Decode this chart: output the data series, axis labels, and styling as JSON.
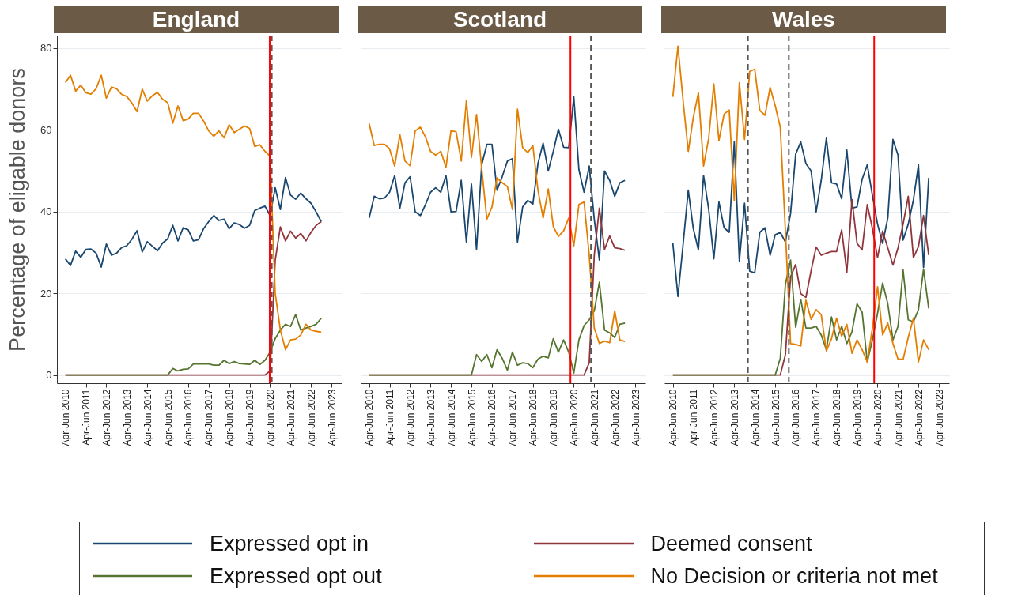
{
  "chart_data": [
    {
      "type": "line",
      "title": "England",
      "ylabel": "Percentage of eligable donors",
      "legend": "bottom",
      "grid": "y",
      "x": [
        "2010-04",
        "2010-07",
        "2010-10",
        "2011-01",
        "2011-04",
        "2011-07",
        "2011-10",
        "2012-01",
        "2012-04",
        "2012-07",
        "2012-10",
        "2013-01",
        "2013-04",
        "2013-07",
        "2013-10",
        "2014-01",
        "2014-04",
        "2014-07",
        "2014-10",
        "2015-01",
        "2015-04",
        "2015-07",
        "2015-10",
        "2016-01",
        "2016-04",
        "2016-07",
        "2016-10",
        "2017-01",
        "2017-04",
        "2017-07",
        "2017-10",
        "2018-01",
        "2018-04",
        "2018-07",
        "2018-10",
        "2019-01",
        "2019-04",
        "2019-07",
        "2019-10",
        "2020-01",
        "2020-04",
        "2020-07",
        "2020-10",
        "2021-01",
        "2021-04",
        "2021-07",
        "2021-10",
        "2022-01",
        "2022-04",
        "2022-07",
        "2022-10"
      ],
      "xlim": [
        "2009-11",
        "2023-10"
      ],
      "ylim": [
        -2,
        83
      ],
      "yticks": [
        0,
        20,
        40,
        60,
        80
      ],
      "xticks": [
        {
          "value": "2010-04",
          "label": "Apr-Jun 2010"
        },
        {
          "value": "2011-04",
          "label": "Apr-Jun 2011"
        },
        {
          "value": "2012-04",
          "label": "Apr-Jun 2012"
        },
        {
          "value": "2013-04",
          "label": "Apr-Jun 2013"
        },
        {
          "value": "2014-04",
          "label": "Apr-Jun 2014"
        },
        {
          "value": "2015-04",
          "label": "Apr-Jun 2015"
        },
        {
          "value": "2016-04",
          "label": "Apr-Jun 2016"
        },
        {
          "value": "2017-04",
          "label": "Apr-Jun 2017"
        },
        {
          "value": "2018-04",
          "label": "Apr-Jun 2018"
        },
        {
          "value": "2019-04",
          "label": "Apr-Jun 2019"
        },
        {
          "value": "2020-04",
          "label": "Apr-Jun 2020"
        },
        {
          "value": "2021-04",
          "label": "Apr-Jun 2021"
        },
        {
          "value": "2022-04",
          "label": "Apr-Jun 2022"
        },
        {
          "value": "2023-04",
          "label": "Apr-Jun 2023"
        }
      ],
      "ref_lines": [
        {
          "axis": "x",
          "value": "2020-03-25",
          "color": "#ff0000",
          "line_style": "solid"
        },
        {
          "axis": "x",
          "value": "2020-05",
          "color": "#555555",
          "line_style": "dashed"
        }
      ],
      "series": [
        {
          "name": "Expressed opt in",
          "color": "#1a476f",
          "values": [
            28.4,
            26.8,
            30.3,
            28.8,
            30.7,
            30.8,
            29.8,
            26.4,
            32,
            29.3,
            29.8,
            31.2,
            31.6,
            33.2,
            35.3,
            30.1,
            32.6,
            31.5,
            30.4,
            32.3,
            33.3,
            36.6,
            32.8,
            36,
            35.5,
            32.8,
            33.1,
            35.8,
            37.5,
            39,
            37.8,
            38.1,
            35.8,
            37.2,
            36.8,
            35.9,
            36.6,
            40.2,
            40.8,
            41.3,
            39,
            45.8,
            40.5,
            48.3,
            44,
            43,
            44.5,
            43.1,
            42,
            39.9,
            37.5
          ]
        },
        {
          "name": "Deemed consent",
          "color": "#90353b",
          "values": [
            0,
            0,
            0,
            0,
            0,
            0,
            0,
            0,
            0,
            0,
            0,
            0,
            0,
            0,
            0,
            0,
            0,
            0,
            0,
            0,
            0,
            0,
            0,
            0,
            0,
            0,
            0,
            0,
            0,
            0,
            0,
            0,
            0,
            0,
            0,
            0,
            0,
            0,
            0,
            0,
            1,
            28,
            36.2,
            32.8,
            35.2,
            33.5,
            34.6,
            32.8,
            34.9,
            36.6,
            37.5
          ]
        },
        {
          "name": "Expressed opt out",
          "color": "#55752f",
          "values": [
            0,
            0,
            0,
            0,
            0,
            0,
            0,
            0,
            0,
            0,
            0,
            0,
            0,
            0,
            0,
            0,
            0,
            0,
            0,
            0,
            0,
            1.6,
            1.0,
            1.4,
            1.5,
            2.7,
            2.7,
            2.7,
            2.7,
            2.4,
            2.4,
            3.6,
            2.8,
            3.3,
            2.8,
            2.7,
            2.6,
            3.6,
            2.6,
            3.6,
            5.6,
            8.9,
            11,
            12.4,
            11.9,
            14.8,
            11,
            11.5,
            11.9,
            12.4,
            13.9
          ]
        },
        {
          "name": "No Decision or criteria not met",
          "color": "#e37e00",
          "values": [
            71.5,
            73.3,
            69.4,
            70.9,
            69,
            68.7,
            70,
            73.3,
            67.7,
            70.4,
            70,
            68.6,
            68.1,
            66.5,
            64.4,
            69.9,
            67,
            68.3,
            69.1,
            67.4,
            66.6,
            61.6,
            65.8,
            62.2,
            62.6,
            64,
            64,
            62.1,
            59.7,
            58.4,
            59.7,
            58,
            61.2,
            59.3,
            60.1,
            60.9,
            60.3,
            55.9,
            56.3,
            54.7,
            53.5,
            20,
            11,
            6.2,
            8.6,
            8.8,
            9.8,
            12.4,
            11,
            10.7,
            10.5
          ]
        }
      ]
    },
    {
      "type": "line",
      "title": "Scotland",
      "legend": "bottom",
      "grid": "y",
      "tick_labels": "x",
      "x": [
        "2010-04",
        "2010-07",
        "2010-10",
        "2011-01",
        "2011-04",
        "2011-07",
        "2011-10",
        "2012-01",
        "2012-04",
        "2012-07",
        "2012-10",
        "2013-01",
        "2013-04",
        "2013-07",
        "2013-10",
        "2014-01",
        "2014-04",
        "2014-07",
        "2014-10",
        "2015-01",
        "2015-04",
        "2015-07",
        "2015-10",
        "2016-01",
        "2016-04",
        "2016-07",
        "2016-10",
        "2017-01",
        "2017-04",
        "2017-07",
        "2017-10",
        "2018-01",
        "2018-04",
        "2018-07",
        "2018-10",
        "2019-01",
        "2019-04",
        "2019-07",
        "2019-10",
        "2020-01",
        "2020-04",
        "2020-07",
        "2020-10",
        "2021-01",
        "2021-04",
        "2021-07",
        "2021-10",
        "2022-01",
        "2022-04",
        "2022-07",
        "2022-10"
      ],
      "xlim": [
        "2009-11",
        "2023-10"
      ],
      "ylim": [
        -2,
        83
      ],
      "yticks": [
        0,
        20,
        40,
        60,
        80
      ],
      "xticks": [
        {
          "value": "2010-04",
          "label": "Apr-Jun 2010"
        },
        {
          "value": "2011-04",
          "label": "Apr-Jun 2011"
        },
        {
          "value": "2012-04",
          "label": "Apr-Jun 2012"
        },
        {
          "value": "2013-04",
          "label": "Apr-Jun 2013"
        },
        {
          "value": "2014-04",
          "label": "Apr-Jun 2014"
        },
        {
          "value": "2015-04",
          "label": "Apr-Jun 2015"
        },
        {
          "value": "2016-04",
          "label": "Apr-Jun 2016"
        },
        {
          "value": "2017-04",
          "label": "Apr-Jun 2017"
        },
        {
          "value": "2018-04",
          "label": "Apr-Jun 2018"
        },
        {
          "value": "2019-04",
          "label": "Apr-Jun 2019"
        },
        {
          "value": "2020-04",
          "label": "Apr-Jun 2020"
        },
        {
          "value": "2021-04",
          "label": "Apr-Jun 2021"
        },
        {
          "value": "2022-04",
          "label": "Apr-Jun 2022"
        },
        {
          "value": "2023-04",
          "label": "Apr-Jun 2023"
        }
      ],
      "ref_lines": [
        {
          "axis": "x",
          "value": "2020-02",
          "color": "#ff0000",
          "line_style": "solid"
        },
        {
          "axis": "x",
          "value": "2021-02",
          "color": "#555555",
          "line_style": "dashed"
        }
      ],
      "series": [
        {
          "name": "Expressed opt in",
          "color": "#1a476f",
          "values": [
            38.4,
            43.7,
            43.1,
            43.3,
            44.7,
            48.8,
            40.8,
            47,
            48.5,
            39.9,
            39,
            41.7,
            44.7,
            45.8,
            44.7,
            48.8,
            39.9,
            40,
            47.6,
            32.5,
            46.7,
            30.7,
            51.4,
            56.4,
            56.4,
            45.2,
            48.5,
            52.3,
            52.9,
            32.5,
            41.1,
            42.7,
            41.8,
            51.7,
            56.7,
            49.9,
            54.7,
            60.1,
            55.7,
            55.6,
            68,
            50.2,
            44.7,
            51.1,
            38.1,
            28.1,
            49.9,
            47.6,
            43.7,
            47,
            47.6
          ]
        },
        {
          "name": "Deemed consent",
          "color": "#90353b",
          "values": [
            0,
            0,
            0,
            0,
            0,
            0,
            0,
            0,
            0,
            0,
            0,
            0,
            0,
            0,
            0,
            0,
            0,
            0,
            0,
            0,
            0,
            0,
            0,
            0,
            0,
            0,
            0,
            0,
            0,
            0,
            0,
            0,
            0,
            0,
            0,
            0,
            0,
            0,
            0,
            0,
            0,
            0,
            0,
            3,
            29.3,
            40.8,
            30.7,
            34,
            31.1,
            30.9,
            30.5
          ]
        },
        {
          "name": "Expressed opt out",
          "color": "#55752f",
          "values": [
            0,
            0,
            0,
            0,
            0,
            0,
            0,
            0,
            0,
            0,
            0,
            0,
            0,
            0,
            0,
            0,
            0,
            0,
            0,
            0,
            0,
            5,
            3.3,
            5,
            1.8,
            6.2,
            4.1,
            1.2,
            5.6,
            2.4,
            3,
            2.8,
            1.8,
            3.9,
            4.6,
            4.2,
            8.9,
            5.6,
            8.6,
            5.6,
            0.5,
            8.6,
            12.1,
            13.5,
            15.7,
            22.7,
            11,
            10.3,
            9.2,
            12.4,
            12.7
          ]
        },
        {
          "name": "No Decision or criteria not met",
          "color": "#e37e00",
          "values": [
            61.5,
            56.1,
            56.4,
            56.4,
            55.3,
            51.1,
            58.8,
            52.3,
            51.2,
            59.7,
            60.6,
            58.2,
            54.7,
            53.8,
            54.7,
            50.8,
            59.7,
            59.5,
            52.3,
            67.1,
            53.2,
            63.7,
            50.5,
            38.1,
            41.1,
            48.2,
            47,
            46.1,
            40.5,
            65,
            55.6,
            54.4,
            56.1,
            45.2,
            38.4,
            45.5,
            36.3,
            33.9,
            35.2,
            38.4,
            31.6,
            41.7,
            42.3,
            29.3,
            11.5,
            7.7,
            8.3,
            7.9,
            15.7,
            8.6,
            8.2
          ]
        }
      ]
    },
    {
      "type": "line",
      "title": "Wales",
      "legend": "bottom",
      "grid": "y",
      "tick_labels": "x",
      "x": [
        "2010-04",
        "2010-07",
        "2010-10",
        "2011-01",
        "2011-04",
        "2011-07",
        "2011-10",
        "2012-01",
        "2012-04",
        "2012-07",
        "2012-10",
        "2013-01",
        "2013-04",
        "2013-07",
        "2013-10",
        "2014-01",
        "2014-04",
        "2014-07",
        "2014-10",
        "2015-01",
        "2015-04",
        "2015-07",
        "2015-10",
        "2016-01",
        "2016-04",
        "2016-07",
        "2016-10",
        "2017-01",
        "2017-04",
        "2017-07",
        "2017-10",
        "2018-01",
        "2018-04",
        "2018-07",
        "2018-10",
        "2019-01",
        "2019-04",
        "2019-07",
        "2019-10",
        "2020-01",
        "2020-04",
        "2020-07",
        "2020-10",
        "2021-01",
        "2021-04",
        "2021-07",
        "2021-10",
        "2022-01",
        "2022-04",
        "2022-07",
        "2022-10"
      ],
      "xlim": [
        "2009-11",
        "2023-10"
      ],
      "ylim": [
        -2,
        83
      ],
      "yticks": [
        0,
        20,
        40,
        60,
        80
      ],
      "xticks": [
        {
          "value": "2010-04",
          "label": "Apr-Jun 2010"
        },
        {
          "value": "2011-04",
          "label": "Apr-Jun 2011"
        },
        {
          "value": "2012-04",
          "label": "Apr-Jun 2012"
        },
        {
          "value": "2013-04",
          "label": "Apr-Jun 2013"
        },
        {
          "value": "2014-04",
          "label": "Apr-Jun 2014"
        },
        {
          "value": "2015-04",
          "label": "Apr-Jun 2015"
        },
        {
          "value": "2016-04",
          "label": "Apr-Jun 2016"
        },
        {
          "value": "2017-04",
          "label": "Apr-Jun 2017"
        },
        {
          "value": "2018-04",
          "label": "Apr-Jun 2018"
        },
        {
          "value": "2019-04",
          "label": "Apr-Jun 2019"
        },
        {
          "value": "2020-04",
          "label": "Apr-Jun 2020"
        },
        {
          "value": "2021-04",
          "label": "Apr-Jun 2021"
        },
        {
          "value": "2022-04",
          "label": "Apr-Jun 2022"
        },
        {
          "value": "2023-04",
          "label": "Apr-Jun 2023"
        }
      ],
      "ref_lines": [
        {
          "axis": "x",
          "value": "2013-12",
          "color": "#555555",
          "line_style": "dashed"
        },
        {
          "axis": "x",
          "value": "2015-12",
          "color": "#555555",
          "line_style": "dashed"
        },
        {
          "axis": "x",
          "value": "2020-02",
          "color": "#ff0000",
          "line_style": "solid"
        }
      ],
      "series": [
        {
          "name": "Expressed opt in",
          "color": "#1a476f",
          "values": [
            32.2,
            19.2,
            32,
            45.2,
            35.8,
            30.6,
            48.8,
            40.5,
            28.4,
            42.3,
            36,
            34.9,
            57,
            27.8,
            42,
            25.4,
            25,
            34.9,
            36,
            29.3,
            34.3,
            34.9,
            32.5,
            39.5,
            54,
            57,
            51.7,
            49.9,
            39.9,
            47.6,
            57.9,
            47,
            46.7,
            43.1,
            55,
            40.8,
            41.1,
            47.9,
            51.4,
            43.9,
            36.9,
            32.2,
            38.4,
            57.6,
            53.8,
            33,
            36.9,
            42.8,
            51.4,
            26.3,
            48.2
          ]
        },
        {
          "name": "Deemed consent",
          "color": "#90353b",
          "values": [
            0,
            0,
            0,
            0,
            0,
            0,
            0,
            0,
            0,
            0,
            0,
            0,
            0,
            0,
            0,
            0,
            0,
            0,
            0,
            0,
            0,
            0,
            5,
            24,
            27,
            19.9,
            19,
            25.5,
            31.3,
            29.3,
            29.8,
            30.2,
            30.2,
            35.5,
            25.1,
            42.9,
            32.2,
            30.6,
            41.7,
            35.8,
            28.7,
            35.2,
            31.1,
            26.9,
            31.1,
            36.9,
            43.7,
            28.7,
            31.4,
            39,
            29.3
          ]
        },
        {
          "name": "Expressed opt out",
          "color": "#55752f",
          "values": [
            0,
            0,
            0,
            0,
            0,
            0,
            0,
            0,
            0,
            0,
            0,
            0,
            0,
            0,
            0,
            0,
            0,
            0,
            0,
            0,
            0,
            4.1,
            22.2,
            28.1,
            11.7,
            18.5,
            11.5,
            11.5,
            11.9,
            9.8,
            6.2,
            14.2,
            8.6,
            11.9,
            7.7,
            10.6,
            17.4,
            15.4,
            3.2,
            8.6,
            15.1,
            22.5,
            17.4,
            8.6,
            11.9,
            25.7,
            13.5,
            13,
            16,
            25.9,
            16.3
          ]
        },
        {
          "name": "No Decision or criteria not met",
          "color": "#e37e00",
          "values": [
            68,
            80.4,
            67,
            54.7,
            63,
            69,
            51.1,
            57.9,
            71.2,
            57.3,
            63.8,
            64.8,
            42.6,
            71.5,
            57.6,
            74.2,
            74.8,
            64.7,
            63.5,
            70.3,
            65.9,
            60.6,
            35.2,
            7.7,
            7.5,
            7.1,
            18.3,
            13.6,
            16,
            14.8,
            5.9,
            8.9,
            13.9,
            9.5,
            12.4,
            5.3,
            8.6,
            6.2,
            3.2,
            11.5,
            21.6,
            9.8,
            12.7,
            7.7,
            3.9,
            3.8,
            9.2,
            13.9,
            3.2,
            8.6,
            6.2
          ]
        }
      ]
    }
  ]
}
